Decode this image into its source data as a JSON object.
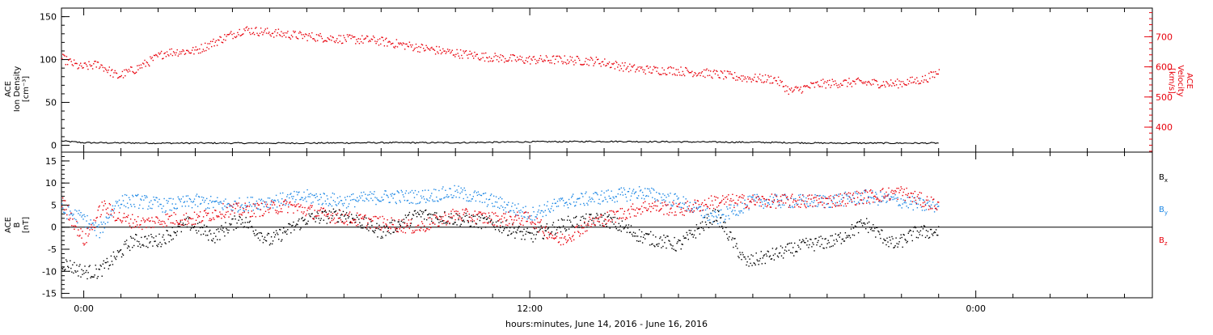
{
  "figure": {
    "xlabel": "hours:minutes, June 14, 2016 - June 16, 2016",
    "x_ticks": [
      "0:00",
      "12:00",
      "0:00"
    ]
  },
  "chart_data": [
    {
      "type": "scatter",
      "panel": "top",
      "left_axis": {
        "label_lines": [
          "ACE",
          "Ion Density",
          "[cm⁻³]"
        ],
        "ylim": [
          -8,
          160
        ],
        "ticks": [
          0,
          50,
          100,
          150
        ],
        "color": "#000000"
      },
      "right_axis": {
        "label_lines": [
          "ACE",
          "Velocity",
          "[km/s]"
        ],
        "ylim": [
          317,
          795
        ],
        "ticks": [
          400,
          500,
          600,
          700
        ],
        "color": "#e8000b"
      },
      "x_units": "hours since 0:00 June 14, 2016",
      "xlim": [
        -0.6,
        28.75
      ],
      "series": [
        {
          "axis": "left",
          "color": "#000000",
          "style": "line",
          "x": [
            -0.6,
            0,
            2,
            4,
            6,
            8,
            10,
            12,
            14,
            16,
            18,
            20,
            22,
            23
          ],
          "y": [
            5,
            3,
            2.5,
            2.5,
            2.5,
            3,
            3,
            4,
            4.5,
            4,
            3.5,
            2.5,
            2.5,
            2.5
          ]
        },
        {
          "axis": "right",
          "color": "#e8000b",
          "style": "dots",
          "x": [
            -0.6,
            -0.1,
            0.4,
            0.9,
            1.4,
            2.2,
            3.0,
            3.8,
            4.3,
            5.0,
            5.8,
            6.8,
            7.8,
            8.8,
            9.8,
            10.8,
            11.8,
            12.8,
            13.8,
            14.8,
            15.4,
            15.8,
            16.8,
            17.8,
            18.6,
            19.0,
            19.8,
            20.8,
            21.8,
            22.6,
            23.0
          ],
          "y": [
            630,
            600,
            610,
            570,
            595,
            650,
            655,
            700,
            725,
            715,
            705,
            695,
            690,
            670,
            650,
            635,
            625,
            625,
            620,
            595,
            590,
            590,
            580,
            565,
            560,
            520,
            545,
            550,
            545,
            560,
            585
          ]
        }
      ]
    },
    {
      "type": "scatter",
      "panel": "bottom",
      "left_axis": {
        "label_lines": [
          "ACE",
          "B",
          "[nT]"
        ],
        "ylim": [
          -16,
          17
        ],
        "ticks": [
          -15,
          -10,
          -5,
          0,
          5,
          10,
          15
        ],
        "color": "#000000"
      },
      "x_units": "hours since 0:00 June 14, 2016",
      "xlim": [
        -0.6,
        28.75
      ],
      "zero_line": true,
      "series": [
        {
          "name": "Bx",
          "color": "#000000",
          "x": [
            -0.6,
            0,
            0.4,
            0.8,
            1.3,
            2.0,
            2.8,
            3.5,
            4.2,
            5.0,
            6.0,
            7.0,
            8.0,
            9.0,
            10.0,
            11.0,
            12.0,
            13.0,
            14.0,
            15.0,
            16.0,
            17.0,
            17.8,
            18.6,
            19.4,
            20.2,
            21.0,
            21.8,
            22.4,
            23.0
          ],
          "y": [
            -8,
            -10,
            -10,
            -7,
            -3,
            -3,
            1,
            -2,
            2,
            -3,
            2,
            3,
            -1,
            3,
            2,
            1,
            -2,
            1,
            2,
            -2,
            -4,
            3,
            -8,
            -6,
            -4,
            -3,
            1,
            -4,
            -1,
            -1
          ]
        },
        {
          "name": "By",
          "color": "#1e88e5",
          "x": [
            -0.6,
            0,
            0.4,
            0.9,
            1.5,
            2.2,
            3.0,
            4.0,
            5.0,
            6.0,
            7.0,
            8.0,
            9.0,
            10.0,
            11.0,
            12.0,
            13.0,
            14.0,
            15.0,
            16.0,
            17.0,
            18.0,
            19.0,
            20.0,
            21.0,
            22.0,
            22.6,
            23.0
          ],
          "y": [
            4,
            2,
            -1,
            6,
            6,
            5,
            6,
            5,
            6,
            7,
            6,
            7,
            7,
            8,
            6,
            3,
            6,
            7,
            8,
            6,
            2,
            6,
            6,
            6,
            7,
            6,
            5,
            5
          ]
        },
        {
          "name": "Bz",
          "color": "#e8000b",
          "x": [
            -0.6,
            0,
            0.5,
            1.0,
            1.6,
            2.3,
            3.0,
            3.8,
            4.6,
            5.5,
            6.4,
            7.2,
            8.0,
            9.0,
            10.0,
            11.0,
            12.0,
            12.8,
            13.6,
            14.4,
            15.2,
            16.0,
            17.0,
            18.0,
            19.0,
            20.0,
            21.0,
            22.0,
            22.6,
            23.0
          ],
          "y": [
            6,
            -3,
            5,
            2,
            1,
            2,
            2,
            4,
            4,
            5,
            3,
            2,
            1,
            0,
            3,
            2,
            2,
            -3,
            1,
            3,
            5,
            4,
            6,
            6,
            6,
            6,
            7,
            8,
            6,
            5
          ]
        }
      ],
      "legend": {
        "placement": "right",
        "entries": [
          {
            "base": "B",
            "sub": "x",
            "color": "#000000"
          },
          {
            "base": "B",
            "sub": "y",
            "color": "#1e88e5"
          },
          {
            "base": "B",
            "sub": "z",
            "color": "#e8000b"
          }
        ]
      }
    }
  ]
}
